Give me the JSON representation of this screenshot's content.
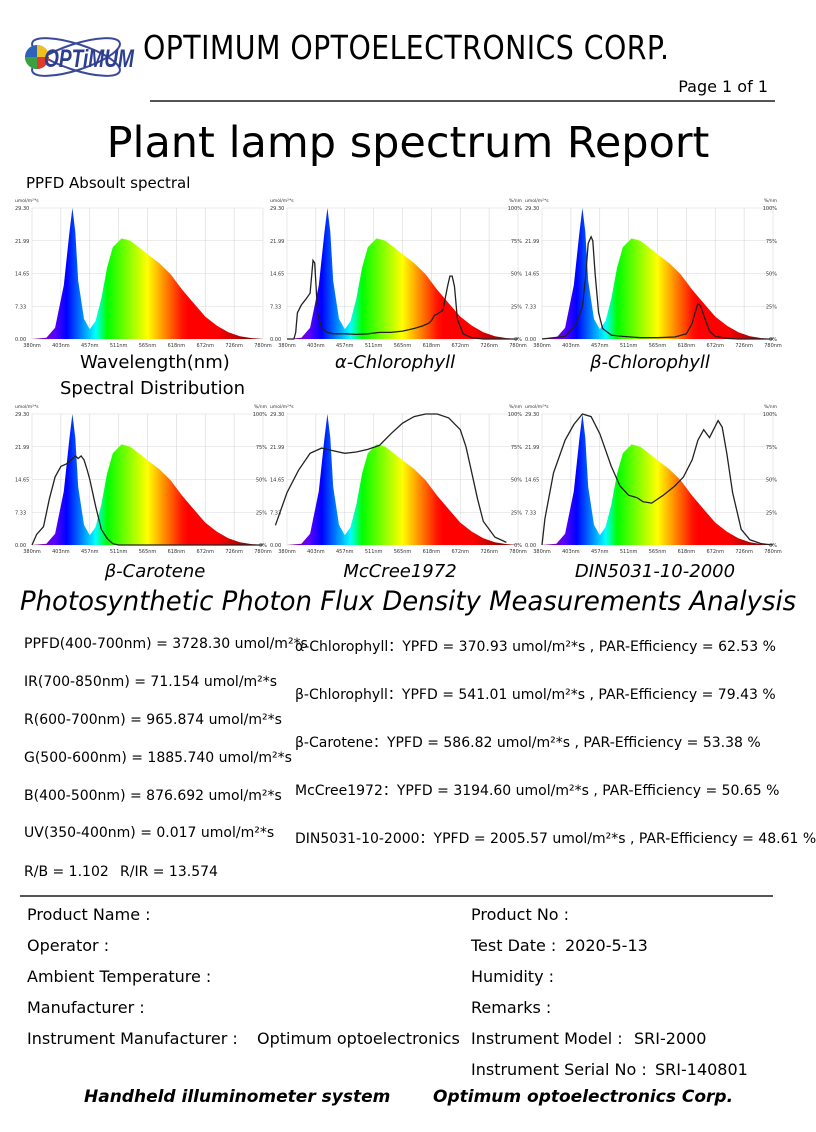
{
  "header": {
    "logo_text": "OPTiMUM",
    "company": "OPTIMUM OPTOELECTRONICS CORP.",
    "page": "Page 1 of 1",
    "title": "Plant lamp spectrum Report"
  },
  "labels": {
    "ppfd_spectral": "PPFD Absoult spectral",
    "wavelength": "Wavelength(nm)",
    "spectral_distribution": "Spectral Distribution"
  },
  "chart_data": [
    {
      "type": "area",
      "caption": "",
      "ylabel": "umol/m²*s",
      "yticks": [
        "29.30",
        "21.99",
        "14.65",
        "7.33",
        "0.00"
      ],
      "ylim": [
        0,
        29.3
      ],
      "xticks": [
        "380nm",
        "403nm",
        "457nm",
        "511nm",
        "565nm",
        "618nm",
        "672nm",
        "726nm",
        "780nm"
      ],
      "xlim": [
        380,
        780
      ],
      "series": [
        {
          "values_x": [
            380,
            405,
            420,
            435,
            445,
            450,
            455,
            460,
            470,
            480,
            490,
            500,
            510,
            520,
            535,
            550,
            565,
            580,
            600,
            620,
            640,
            660,
            680,
            700,
            720,
            740,
            760,
            780
          ],
          "values_y": [
            0,
            0.3,
            2.5,
            12,
            24,
            29.3,
            24,
            13,
            4.5,
            2.2,
            4,
            9,
            16,
            20.5,
            22.5,
            22,
            20.5,
            19,
            17,
            14.5,
            11,
            8,
            5,
            3,
            1.5,
            0.6,
            0.2,
            0
          ]
        }
      ]
    },
    {
      "type": "area",
      "caption": "α-Chlorophyll",
      "ylabel": "umol/m²*s",
      "y2label": "%/nm",
      "yticks": [
        "29.30",
        "21.99",
        "14.65",
        "7.33",
        "0.00"
      ],
      "y2ticks": [
        "100%",
        "75%",
        "50%",
        "25%",
        "0%"
      ],
      "ylim": [
        0,
        29.3
      ],
      "xticks": [
        "380nm",
        "403nm",
        "457nm",
        "511nm",
        "565nm",
        "618nm",
        "672nm",
        "726nm",
        "780nm"
      ],
      "xlim": [
        380,
        780
      ],
      "series": [
        {
          "values_x": [
            380,
            405,
            420,
            435,
            445,
            450,
            455,
            460,
            470,
            480,
            490,
            500,
            510,
            520,
            535,
            550,
            565,
            580,
            600,
            620,
            640,
            660,
            680,
            700,
            720,
            740,
            760,
            780
          ],
          "values_y": [
            0,
            0.3,
            2.5,
            12,
            24,
            29.3,
            24,
            13,
            4.5,
            2.2,
            4,
            9,
            16,
            20.5,
            22.5,
            22,
            20.5,
            19,
            17,
            14.5,
            11,
            8,
            5,
            3,
            1.5,
            0.6,
            0.2,
            0
          ]
        },
        {
          "name": "α-Chlorophyll",
          "axis": "right",
          "values_x": [
            380,
            392,
            395,
            398,
            405,
            412,
            420,
            425,
            428,
            433,
            440,
            450,
            460,
            480,
            500,
            520,
            540,
            560,
            580,
            600,
            615,
            625,
            630,
            635,
            640,
            650,
            658,
            662,
            666,
            670,
            675,
            685,
            700,
            720,
            750,
            780
          ],
          "values_y": [
            0,
            0,
            5,
            20,
            26,
            30,
            35,
            60,
            58,
            20,
            8,
            5,
            4,
            4,
            3.5,
            4,
            5,
            5,
            6,
            8,
            10,
            12,
            14,
            18,
            19,
            22,
            40,
            48,
            48,
            40,
            15,
            4,
            1,
            0,
            0,
            0
          ]
        }
      ]
    },
    {
      "type": "area",
      "caption": "β-Chlorophyll",
      "ylabel": "umol/m²*s",
      "y2label": "%/nm",
      "yticks": [
        "29.30",
        "21.99",
        "14.65",
        "7.33",
        "0.00"
      ],
      "y2ticks": [
        "100%",
        "75%",
        "50%",
        "25%",
        "0%"
      ],
      "ylim": [
        0,
        29.3
      ],
      "xticks": [
        "380nm",
        "403nm",
        "457nm",
        "511nm",
        "565nm",
        "618nm",
        "672nm",
        "726nm",
        "780nm"
      ],
      "xlim": [
        380,
        780
      ],
      "series": [
        {
          "values_x": [
            380,
            405,
            420,
            435,
            445,
            450,
            455,
            460,
            470,
            480,
            490,
            500,
            510,
            520,
            535,
            550,
            565,
            580,
            600,
            620,
            640,
            660,
            680,
            700,
            720,
            740,
            760,
            780
          ],
          "values_y": [
            0,
            0.3,
            2.5,
            12,
            24,
            29.3,
            24,
            13,
            4.5,
            2.2,
            4,
            9,
            16,
            20.5,
            22.5,
            22,
            20.5,
            19,
            17,
            14.5,
            11,
            8,
            5,
            3,
            1.5,
            0.6,
            0.2,
            0
          ]
        },
        {
          "name": "β-Chlorophyll",
          "axis": "right",
          "values_x": [
            380,
            420,
            440,
            450,
            455,
            460,
            465,
            468,
            472,
            478,
            485,
            500,
            520,
            550,
            580,
            610,
            630,
            640,
            645,
            650,
            655,
            660,
            670,
            680,
            700,
            720,
            780
          ],
          "values_y": [
            0,
            2,
            12,
            25,
            45,
            73,
            78,
            75,
            50,
            20,
            8,
            3,
            2,
            1,
            1,
            1.5,
            4,
            12,
            20,
            27,
            25,
            18,
            6,
            2,
            0.5,
            0,
            0
          ]
        }
      ]
    },
    {
      "type": "area",
      "caption": "β-Carotene",
      "ylabel": "umol/m²*s",
      "y2label": "%/nm",
      "yticks": [
        "29.30",
        "21.99",
        "14.65",
        "7.33",
        "0.00"
      ],
      "y2ticks": [
        "100%",
        "75%",
        "50%",
        "25%",
        "0%"
      ],
      "ylim": [
        0,
        29.3
      ],
      "xticks": [
        "380nm",
        "403nm",
        "457nm",
        "511nm",
        "565nm",
        "618nm",
        "672nm",
        "726nm",
        "780nm"
      ],
      "xlim": [
        380,
        780
      ],
      "series": [
        {
          "values_x": [
            380,
            405,
            420,
            435,
            445,
            450,
            455,
            460,
            470,
            480,
            490,
            500,
            510,
            520,
            535,
            550,
            565,
            580,
            600,
            620,
            640,
            660,
            680,
            700,
            720,
            740,
            760,
            780
          ],
          "values_y": [
            0,
            0.3,
            2.5,
            12,
            24,
            29.3,
            24,
            13,
            4.5,
            2.2,
            4,
            9,
            16,
            20.5,
            22.5,
            22,
            20.5,
            19,
            17,
            14.5,
            11,
            8,
            5,
            3,
            1.5,
            0.6,
            0.2,
            0
          ]
        },
        {
          "name": "β-Carotene",
          "axis": "right",
          "values_x": [
            380,
            388,
            400,
            410,
            420,
            430,
            440,
            448,
            455,
            460,
            465,
            470,
            475,
            480,
            490,
            500,
            510,
            520,
            530,
            780
          ],
          "values_y": [
            0,
            8,
            14,
            35,
            52,
            60,
            62,
            65,
            68,
            66,
            68,
            65,
            58,
            50,
            30,
            12,
            5,
            1,
            0,
            0
          ]
        }
      ]
    },
    {
      "type": "area",
      "caption": "McCree1972",
      "ylabel": "umol/m²*s",
      "y2label": "%/nm",
      "yticks": [
        "29.30",
        "21.99",
        "14.65",
        "7.33",
        "0.00"
      ],
      "y2ticks": [
        "100%",
        "75%",
        "50%",
        "25%",
        "0%"
      ],
      "ylim": [
        0,
        29.3
      ],
      "xticks": [
        "380nm",
        "403nm",
        "457nm",
        "511nm",
        "565nm",
        "618nm",
        "672nm",
        "726nm",
        "780nm"
      ],
      "xlim": [
        380,
        780
      ],
      "series": [
        {
          "values_x": [
            380,
            405,
            420,
            435,
            445,
            450,
            455,
            460,
            470,
            480,
            490,
            500,
            510,
            520,
            535,
            550,
            565,
            580,
            600,
            620,
            640,
            660,
            680,
            700,
            720,
            740,
            760,
            780
          ],
          "values_y": [
            0,
            0.3,
            2.5,
            12,
            24,
            29.3,
            24,
            13,
            4.5,
            2.2,
            4,
            9,
            16,
            20.5,
            22.5,
            22,
            20.5,
            19,
            17,
            14.5,
            11,
            8,
            5,
            3,
            1.5,
            0.6,
            0.2,
            0
          ]
        },
        {
          "name": "McCree1972",
          "axis": "right",
          "values_x": [
            360,
            380,
            400,
            420,
            440,
            460,
            480,
            500,
            520,
            540,
            560,
            580,
            600,
            620,
            640,
            660,
            680,
            690,
            700,
            710,
            720,
            740,
            760
          ],
          "values_y": [
            15,
            40,
            57,
            70,
            74,
            72,
            70,
            71,
            73,
            76,
            85,
            93,
            98,
            100,
            100,
            97,
            88,
            75,
            55,
            35,
            18,
            6,
            2
          ]
        }
      ]
    },
    {
      "type": "area",
      "caption": "DIN5031-10-2000",
      "ylabel": "umol/m²*s",
      "y2label": "%/nm",
      "yticks": [
        "29.30",
        "21.99",
        "14.65",
        "7.33",
        "0.00"
      ],
      "y2ticks": [
        "100%",
        "75%",
        "50%",
        "25%",
        "0%"
      ],
      "ylim": [
        0,
        29.3
      ],
      "xticks": [
        "380nm",
        "403nm",
        "457nm",
        "511nm",
        "565nm",
        "618nm",
        "672nm",
        "726nm",
        "780nm"
      ],
      "xlim": [
        380,
        780
      ],
      "series": [
        {
          "values_x": [
            380,
            405,
            420,
            435,
            445,
            450,
            455,
            460,
            470,
            480,
            490,
            500,
            510,
            520,
            535,
            550,
            565,
            580,
            600,
            620,
            640,
            660,
            680,
            700,
            720,
            740,
            760,
            780
          ],
          "values_y": [
            0,
            0.3,
            2.5,
            12,
            24,
            29.3,
            24,
            13,
            4.5,
            2.2,
            4,
            9,
            16,
            20.5,
            22.5,
            22,
            20.5,
            19,
            17,
            14.5,
            11,
            8,
            5,
            3,
            1.5,
            0.6,
            0.2,
            0
          ]
        },
        {
          "name": "DIN5031-10-2000",
          "axis": "right",
          "values_x": [
            380,
            385,
            400,
            420,
            435,
            450,
            465,
            480,
            500,
            515,
            530,
            545,
            555,
            570,
            590,
            610,
            625,
            640,
            650,
            660,
            670,
            677,
            685,
            692,
            700,
            710,
            725,
            740,
            760,
            780
          ],
          "values_y": [
            0,
            20,
            55,
            80,
            92,
            100,
            98,
            85,
            60,
            45,
            38,
            36,
            33,
            32,
            38,
            45,
            52,
            65,
            80,
            88,
            82,
            88,
            95,
            90,
            70,
            40,
            12,
            4,
            1,
            0
          ]
        }
      ]
    }
  ],
  "analysis": {
    "title": "Photosynthetic Photon Flux Density Measurements Analysis",
    "left": [
      "PPFD(400-700nm) = 3728.30 umol/m²*s",
      "IR(700-850nm) = 71.154 umol/m²*s",
      "R(600-700nm) = 965.874 umol/m²*s",
      "G(500-600nm) = 1885.740 umol/m²*s",
      "B(400-500nm) = 876.692 umol/m²*s",
      "UV(350-400nm) = 0.017 umol/m²*s"
    ],
    "rb": "R/B = 1.102",
    "rir": "R/IR = 13.574",
    "right": [
      "α-Chlorophyll：YPFD = 370.93 umol/m²*s , PAR-Efficiency = 62.53 %",
      "β-Chlorophyll：YPFD = 541.01 umol/m²*s , PAR-Efficiency = 79.43 %",
      "β-Carotene：YPFD = 586.82 umol/m²*s , PAR-Efficiency = 53.38 %",
      "McCree1972：YPFD = 3194.60 umol/m²*s , PAR-Efficiency = 50.65 %",
      "DIN5031-10-2000：YPFD = 2005.57 umol/m²*s , PAR-Efficiency = 48.61 %"
    ]
  },
  "info": {
    "product_name_label": "Product Name :",
    "operator_label": "Operator :",
    "ambient_label": "Ambient Temperature :",
    "manufacturer_label": "Manufacturer :",
    "instr_manufacturer_label": "Instrument Manufacturer :",
    "instr_manufacturer_value": "Optimum optoelectronics",
    "product_no_label": "Product No :",
    "test_date_label": "Test Date :",
    "test_date_value": "2020-5-13",
    "humidity_label": "Humidity :",
    "remarks_label": "Remarks :",
    "instr_model_label": "Instrument Model :",
    "instr_model_value": "SRI-2000",
    "instr_serial_label": "Instrument Serial No :",
    "instr_serial_value": "SRI-140801"
  },
  "footer": {
    "left": "Handheld illuminometer system",
    "right": "Optimum optoelectronics Corp."
  }
}
